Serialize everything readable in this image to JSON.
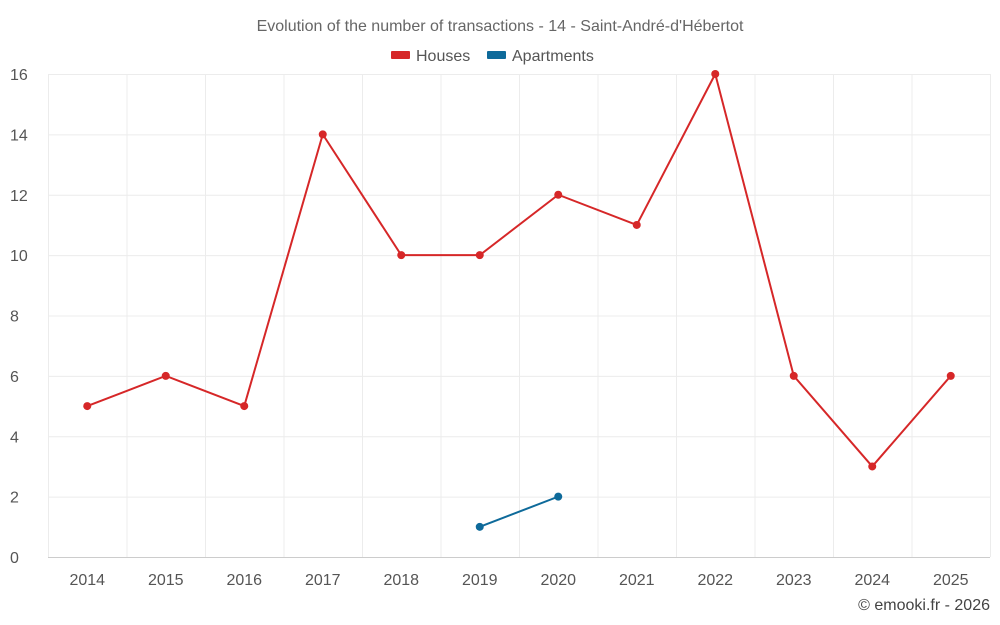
{
  "chart_data": {
    "type": "line",
    "title": "Evolution of the number of transactions - 14 - Saint-André-d'Hébertot",
    "xlabel": "",
    "ylabel": "",
    "categories": [
      "2014",
      "2015",
      "2016",
      "2017",
      "2018",
      "2019",
      "2020",
      "2021",
      "2022",
      "2023",
      "2024",
      "2025"
    ],
    "ylim": [
      0,
      16
    ],
    "yticks": [
      0,
      2,
      4,
      6,
      8,
      10,
      12,
      14,
      16
    ],
    "grid": true,
    "legend_position": "top-center",
    "series": [
      {
        "name": "Houses",
        "color": "#d62728",
        "values": [
          5,
          6,
          5,
          14,
          10,
          10,
          12,
          11,
          16,
          6,
          3,
          6
        ]
      },
      {
        "name": "Apartments",
        "color": "#0e6a9a",
        "values": [
          null,
          null,
          null,
          null,
          null,
          1,
          2,
          null,
          null,
          null,
          null,
          null
        ]
      }
    ]
  },
  "credit": "© emooki.fr - 2026"
}
